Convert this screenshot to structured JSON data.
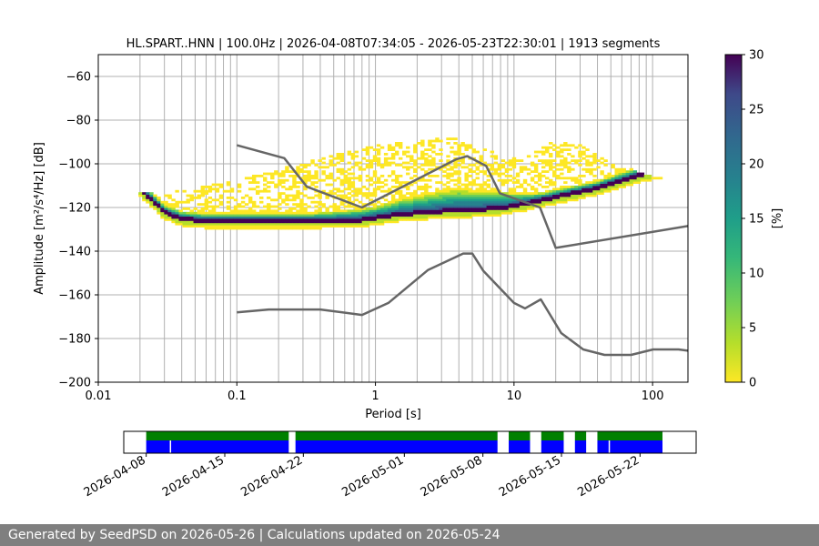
{
  "chart_data": {
    "type": "heatmap",
    "title": "HL.SPART..HNN | 100.0Hz | 2026-04-08T07:34:05 - 2026-05-23T22:30:01 | 1913 segments",
    "xlabel": "Period [s]",
    "ylabel": "Amplitude [m²/s⁴/Hz] [dB]",
    "x_scale": "log",
    "xlim": [
      0.01,
      180
    ],
    "ylim": [
      -200,
      -50
    ],
    "x_ticks": [
      "0.01",
      "0.1",
      "1",
      "10",
      "100"
    ],
    "y_ticks": [
      "−60",
      "−80",
      "−100",
      "−120",
      "−140",
      "−160",
      "−180",
      "−200"
    ],
    "grid": true,
    "colorbar": {
      "label": "[%]",
      "range": [
        0,
        30
      ],
      "ticks": [
        "0",
        "5",
        "10",
        "15",
        "20",
        "25",
        "30"
      ],
      "colormap": "viridis_r"
    },
    "psd_mode": [
      [
        0.0195,
        -110
      ],
      [
        0.022,
        -114
      ],
      [
        0.025,
        -117
      ],
      [
        0.03,
        -122
      ],
      [
        0.04,
        -125
      ],
      [
        0.06,
        -126
      ],
      [
        0.1,
        -126
      ],
      [
        0.2,
        -126
      ],
      [
        0.4,
        -126
      ],
      [
        0.8,
        -125.5
      ],
      [
        1.5,
        -123
      ],
      [
        3,
        -121.5
      ],
      [
        5,
        -121
      ],
      [
        8,
        -120
      ],
      [
        12,
        -118
      ],
      [
        20,
        -115
      ],
      [
        40,
        -111
      ],
      [
        80,
        -105
      ],
      [
        180,
        -101
      ]
    ],
    "psd_spread": [
      [
        0.0195,
        3
      ],
      [
        0.03,
        3
      ],
      [
        0.1,
        3
      ],
      [
        0.3,
        3
      ],
      [
        1,
        5
      ],
      [
        2,
        8
      ],
      [
        4,
        10
      ],
      [
        8,
        7
      ],
      [
        15,
        3
      ],
      [
        40,
        3
      ],
      [
        180,
        4
      ]
    ],
    "psd_scatter_envelope": [
      [
        0.03,
        -114
      ],
      [
        0.08,
        -109
      ],
      [
        0.15,
        -105
      ],
      [
        0.3,
        -100
      ],
      [
        0.6,
        -95
      ],
      [
        1,
        -92
      ],
      [
        2,
        -90
      ],
      [
        3.5,
        -88
      ],
      [
        5,
        -92
      ],
      [
        8,
        -96
      ],
      [
        12,
        -98
      ],
      [
        20,
        -89
      ],
      [
        30,
        -92
      ],
      [
        50,
        -100
      ],
      [
        100,
        -107
      ],
      [
        180,
        -108
      ]
    ],
    "noise_model_high": [
      [
        0.1,
        -91.5
      ],
      [
        0.22,
        -97.4
      ],
      [
        0.32,
        -110.5
      ],
      [
        0.8,
        -120
      ],
      [
        3.8,
        -98
      ],
      [
        4.6,
        -96.5
      ],
      [
        6.3,
        -101
      ],
      [
        7.9,
        -113.5
      ],
      [
        15.4,
        -120
      ],
      [
        20,
        -138.5
      ],
      [
        180,
        -128.5
      ]
    ],
    "noise_model_low": [
      [
        0.1,
        -168
      ],
      [
        0.17,
        -166.7
      ],
      [
        0.4,
        -166.7
      ],
      [
        0.8,
        -169.2
      ],
      [
        1.24,
        -163.7
      ],
      [
        2.4,
        -148.6
      ],
      [
        4.3,
        -141.1
      ],
      [
        5.0,
        -141.1
      ],
      [
        6.0,
        -149
      ],
      [
        10,
        -163.7
      ],
      [
        12,
        -166.2
      ],
      [
        15.6,
        -162.1
      ],
      [
        21.9,
        -177.5
      ],
      [
        31.6,
        -185
      ],
      [
        45,
        -187.5
      ],
      [
        70,
        -187.5
      ],
      [
        101,
        -185
      ],
      [
        154,
        -185
      ],
      [
        180,
        -185.6
      ]
    ],
    "availability": {
      "date_ticks": [
        "2026-04-08",
        "2026-04-15",
        "2026-04-22",
        "2026-05-01",
        "2026-05-08",
        "2026-05-15",
        "2026-05-22"
      ],
      "range": [
        "2026-04-06",
        "2026-05-27"
      ],
      "data_segments": [
        [
          "2026-04-08",
          "2026-04-20.7"
        ],
        [
          "2026-04-21.3",
          "2026-05-09.3"
        ],
        [
          "2026-05-10.3",
          "2026-05-12.2"
        ],
        [
          "2026-05-13.2",
          "2026-05-15.2"
        ],
        [
          "2026-05-16.2",
          "2026-05-17.2"
        ],
        [
          "2026-05-18.2",
          "2026-05-24"
        ]
      ],
      "gaps_in_processed": [
        "2026-04-10.1",
        "2026-05-19.2"
      ],
      "colors": {
        "data": "#008000",
        "processed": "#0000ff"
      }
    }
  },
  "footer": {
    "text": "Generated by SeedPSD on 2026-05-26 | Calculations updated on 2026-05-24"
  }
}
